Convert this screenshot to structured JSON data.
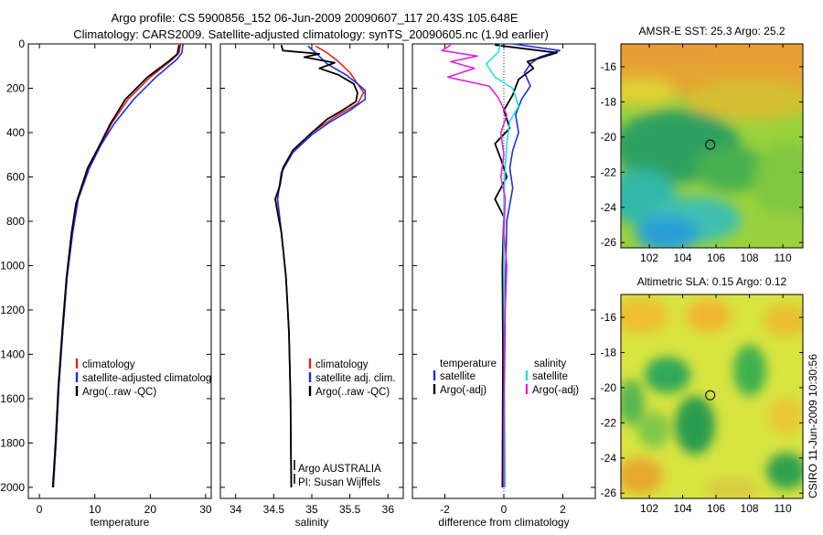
{
  "title": {
    "line1": "Argo profile: CS 5900856_152 06-Jun-2009 20090607_117 20.43S 105.648E",
    "line2": "Climatology: CARS2009. Satellite-adjusted climatology: synTS_20090605.nc (1.9d earlier)"
  },
  "side_stamp": "CSIRO 11-Jun-2009 10:30:56",
  "colors": {
    "climatology": "#e8231b",
    "satellite": "#1c2ee8",
    "argo": "#000000",
    "sat_diff": "#22e0e0",
    "argo_sal_diff": "#e020e0"
  },
  "chart_data": [
    {
      "type": "line",
      "id": "temperature",
      "xlabel": "temperature",
      "xlim": [
        -2,
        31
      ],
      "ylim": [
        2050,
        0
      ],
      "xticks": [
        0,
        10,
        20,
        30
      ],
      "yticks": [
        0,
        200,
        400,
        600,
        800,
        1000,
        1200,
        1400,
        1600,
        1800,
        2000
      ],
      "legend": [
        "climatology",
        "satellite-adjusted climatolog",
        "Argo(..raw -QC)"
      ],
      "series": [
        {
          "name": "climatology",
          "color": "#e8231b",
          "points": [
            [
              25.5,
              0
            ],
            [
              25.2,
              40
            ],
            [
              24.0,
              70
            ],
            [
              20,
              150
            ],
            [
              16,
              250
            ],
            [
              13,
              360
            ],
            [
              11,
              460
            ],
            [
              9,
              560
            ],
            [
              7,
              700
            ],
            [
              6,
              850
            ],
            [
              5,
              1050
            ],
            [
              4.2,
              1300
            ],
            [
              3.5,
              1550
            ],
            [
              3,
              1800
            ],
            [
              2.5,
              2000
            ]
          ]
        },
        {
          "name": "satellite-adjusted climatolog",
          "color": "#1c2ee8",
          "points": [
            [
              25.9,
              0
            ],
            [
              25.7,
              40
            ],
            [
              24.8,
              70
            ],
            [
              21,
              150
            ],
            [
              17,
              250
            ],
            [
              13.5,
              360
            ],
            [
              11,
              460
            ],
            [
              9,
              560
            ],
            [
              7,
              700
            ],
            [
              6,
              850
            ],
            [
              5,
              1050
            ],
            [
              4.2,
              1300
            ],
            [
              3.5,
              1550
            ],
            [
              3,
              1800
            ],
            [
              2.5,
              2000
            ]
          ]
        },
        {
          "name": "Argo(..raw -QC)",
          "color": "#000000",
          "points": [
            [
              25.2,
              5
            ],
            [
              24.9,
              45
            ],
            [
              23.5,
              75
            ],
            [
              19.5,
              150
            ],
            [
              15.5,
              250
            ],
            [
              12.8,
              360
            ],
            [
              10.8,
              460
            ],
            [
              8.7,
              560
            ],
            [
              6.6,
              720
            ],
            [
              5.8,
              850
            ],
            [
              4.9,
              1050
            ],
            [
              4.1,
              1300
            ],
            [
              3.4,
              1550
            ],
            [
              2.9,
              1800
            ],
            [
              2.4,
              2000
            ]
          ]
        }
      ]
    },
    {
      "type": "line",
      "id": "salinity",
      "xlabel": "salinity",
      "xlim": [
        33.8,
        36.2
      ],
      "ylim": [
        2050,
        0
      ],
      "xticks": [
        34,
        34.5,
        35,
        35.5,
        36
      ],
      "legend": [
        "climatology",
        "satellite adj. clim.",
        "Argo(..raw -QC)"
      ],
      "annotations": [
        "Argo AUSTRALIA",
        "PI: Susan Wijffels"
      ],
      "series": [
        {
          "name": "climatology",
          "color": "#e8231b",
          "points": [
            [
              35.05,
              10
            ],
            [
              35.2,
              40
            ],
            [
              35.35,
              80
            ],
            [
              35.5,
              130
            ],
            [
              35.6,
              180
            ],
            [
              35.68,
              220
            ],
            [
              35.6,
              270
            ],
            [
              35.3,
              330
            ],
            [
              35.0,
              400
            ],
            [
              34.75,
              480
            ],
            [
              34.6,
              580
            ],
            [
              34.55,
              700
            ],
            [
              34.6,
              850
            ],
            [
              34.66,
              1050
            ],
            [
              34.7,
              1300
            ],
            [
              34.72,
              1600
            ],
            [
              34.73,
              2000
            ]
          ]
        },
        {
          "name": "satellite adj. clim.",
          "color": "#1c2ee8",
          "points": [
            [
              34.95,
              10
            ],
            [
              35.05,
              40
            ],
            [
              35.2,
              90
            ],
            [
              35.45,
              140
            ],
            [
              35.6,
              180
            ],
            [
              35.7,
              210
            ],
            [
              35.7,
              250
            ],
            [
              35.5,
              300
            ],
            [
              35.25,
              350
            ],
            [
              35.0,
              410
            ],
            [
              34.75,
              490
            ],
            [
              34.6,
              580
            ],
            [
              34.55,
              700
            ],
            [
              34.6,
              850
            ],
            [
              34.66,
              1050
            ],
            [
              34.7,
              1300
            ],
            [
              34.72,
              1600
            ],
            [
              34.73,
              2000
            ]
          ]
        },
        {
          "name": "Argo(..raw -QC)",
          "color": "#000000",
          "points": [
            [
              34.6,
              5
            ],
            [
              34.62,
              30
            ],
            [
              35.1,
              45
            ],
            [
              34.9,
              60
            ],
            [
              35.3,
              85
            ],
            [
              35.1,
              110
            ],
            [
              35.35,
              140
            ],
            [
              35.55,
              180
            ],
            [
              35.6,
              220
            ],
            [
              35.58,
              260
            ],
            [
              35.4,
              300
            ],
            [
              35.2,
              340
            ],
            [
              35.0,
              400
            ],
            [
              34.75,
              480
            ],
            [
              34.62,
              560
            ],
            [
              34.58,
              640
            ],
            [
              34.52,
              700
            ],
            [
              34.55,
              760
            ],
            [
              34.6,
              850
            ],
            [
              34.66,
              1050
            ],
            [
              34.7,
              1300
            ],
            [
              34.72,
              1600
            ],
            [
              34.73,
              2000
            ]
          ]
        }
      ]
    },
    {
      "type": "line",
      "id": "difference",
      "xlabel": "difference from climatology",
      "xlim": [
        -3.1,
        3.1
      ],
      "ylim": [
        2050,
        0
      ],
      "xticks": [
        -2,
        0,
        2
      ],
      "legend_temperature": {
        "title": "temperature",
        "items": [
          "satellite",
          "Argo(-adj)"
        ]
      },
      "legend_salinity": {
        "title": "salinity",
        "items": [
          "satellite",
          "Argo(-adj)"
        ]
      },
      "series": [
        {
          "name": "satellite (temperature)",
          "color": "#1c2ee8",
          "points": [
            [
              0.3,
              0
            ],
            [
              1.9,
              30
            ],
            [
              1.2,
              60
            ],
            [
              0.9,
              90
            ],
            [
              0.7,
              130
            ],
            [
              0.9,
              190
            ],
            [
              0.6,
              250
            ],
            [
              0.4,
              320
            ],
            [
              0.5,
              400
            ],
            [
              0.3,
              480
            ],
            [
              0.2,
              560
            ],
            [
              0.3,
              650
            ],
            [
              0.1,
              800
            ],
            [
              0.05,
              1100
            ],
            [
              0.02,
              1600
            ],
            [
              0,
              2000
            ]
          ]
        },
        {
          "name": "Argo(-adj) (temperature)",
          "color": "#000000",
          "points": [
            [
              -0.3,
              5
            ],
            [
              1.8,
              40
            ],
            [
              0.8,
              80
            ],
            [
              1.0,
              110
            ],
            [
              0.5,
              160
            ],
            [
              0.3,
              230
            ],
            [
              0.0,
              300
            ],
            [
              0.2,
              380
            ],
            [
              -0.3,
              450
            ],
            [
              -0.1,
              520
            ],
            [
              0.1,
              600
            ],
            [
              -0.3,
              700
            ],
            [
              0.0,
              780
            ],
            [
              -0.05,
              1000
            ],
            [
              -0.03,
              1400
            ],
            [
              -0.05,
              2000
            ]
          ]
        },
        {
          "name": "satellite (salinity)",
          "color": "#22e0e0",
          "points": [
            [
              -0.1,
              0
            ],
            [
              -0.2,
              40
            ],
            [
              -0.6,
              90
            ],
            [
              -0.3,
              150
            ],
            [
              0.3,
              200
            ],
            [
              0.5,
              280
            ],
            [
              0.2,
              350
            ],
            [
              0.1,
              450
            ],
            [
              0.05,
              550
            ],
            [
              0.0,
              700
            ],
            [
              0.0,
              1000
            ],
            [
              0.02,
              1500
            ],
            [
              0.05,
              2000
            ]
          ]
        },
        {
          "name": "Argo(-adj) (salinity)",
          "color": "#e020e0",
          "points": [
            [
              -1.8,
              5
            ],
            [
              -2.1,
              30
            ],
            [
              -0.9,
              55
            ],
            [
              -1.8,
              80
            ],
            [
              -1.0,
              110
            ],
            [
              -1.9,
              150
            ],
            [
              -0.5,
              190
            ],
            [
              -0.2,
              240
            ],
            [
              0.1,
              320
            ],
            [
              -0.1,
              400
            ],
            [
              0.0,
              500
            ],
            [
              -0.1,
              600
            ],
            [
              0.05,
              700
            ],
            [
              0.0,
              850
            ],
            [
              0.1,
              1000
            ],
            [
              0.02,
              1300
            ],
            [
              0.0,
              1700
            ],
            [
              0.0,
              2000
            ]
          ]
        }
      ]
    },
    {
      "type": "heatmap",
      "id": "sst_map",
      "title": "AMSR-E SST: 25.3 Argo: 25.2",
      "xlim": [
        100.3,
        111.2
      ],
      "ylim": [
        -26.3,
        -14.7
      ],
      "xticks": [
        102,
        104,
        106,
        108,
        110
      ],
      "yticks": [
        -16,
        -18,
        -20,
        -22,
        -24,
        -26
      ],
      "marker": [
        105.65,
        -20.43
      ]
    },
    {
      "type": "heatmap",
      "id": "sla_map",
      "title": "Altimetric SLA: 0.15 Argo: 0.12",
      "xlim": [
        100.3,
        111.2
      ],
      "ylim": [
        -26.3,
        -14.7
      ],
      "xticks": [
        102,
        104,
        106,
        108,
        110
      ],
      "yticks": [
        -16,
        -18,
        -20,
        -22,
        -24,
        -26
      ],
      "marker": [
        105.65,
        -20.43
      ]
    }
  ]
}
